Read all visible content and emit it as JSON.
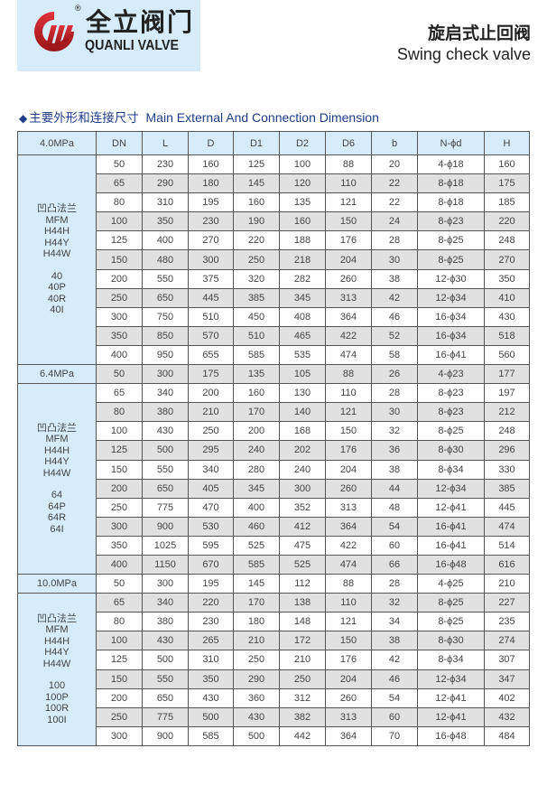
{
  "logo": {
    "cn": "全立阀门",
    "en": "QUANLI VALVE",
    "registered": "®",
    "colors": {
      "red": "#c8202a",
      "box": "#d6ecfb"
    }
  },
  "title": {
    "cn": "旋启式止回阀",
    "en": "Swing check valve"
  },
  "section": {
    "marker": "◆",
    "cn": "主要外形和连接尺寸",
    "en": "Main External And Connection Dimension"
  },
  "table": {
    "headers": [
      "DN",
      "L",
      "D",
      "D1",
      "D2",
      "D6",
      "b",
      "N-ϕd",
      "H"
    ],
    "groups": [
      {
        "pressure": "4.0MPa",
        "model_lines": [
          "凹凸法兰",
          "MFM",
          "H44H",
          "H44Y",
          "H44W",
          "",
          "40",
          "40P",
          "40R",
          "40I"
        ],
        "rows": [
          [
            "50",
            "230",
            "160",
            "125",
            "100",
            "88",
            "20",
            "4-ϕ18",
            "160"
          ],
          [
            "65",
            "290",
            "180",
            "145",
            "120",
            "110",
            "22",
            "8-ϕ18",
            "175"
          ],
          [
            "80",
            "310",
            "195",
            "160",
            "135",
            "121",
            "22",
            "8-ϕ18",
            "185"
          ],
          [
            "100",
            "350",
            "230",
            "190",
            "160",
            "150",
            "24",
            "8-ϕ23",
            "220"
          ],
          [
            "125",
            "400",
            "270",
            "220",
            "188",
            "176",
            "28",
            "8-ϕ25",
            "248"
          ],
          [
            "150",
            "480",
            "300",
            "250",
            "218",
            "204",
            "30",
            "8-ϕ25",
            "270"
          ],
          [
            "200",
            "550",
            "375",
            "320",
            "282",
            "260",
            "38",
            "12-ϕ30",
            "350"
          ],
          [
            "250",
            "650",
            "445",
            "385",
            "345",
            "313",
            "42",
            "12-ϕ34",
            "410"
          ],
          [
            "300",
            "750",
            "510",
            "450",
            "408",
            "364",
            "46",
            "16-ϕ34",
            "430"
          ],
          [
            "350",
            "850",
            "570",
            "510",
            "465",
            "422",
            "52",
            "16-ϕ34",
            "518"
          ],
          [
            "400",
            "950",
            "655",
            "585",
            "535",
            "474",
            "58",
            "16-ϕ41",
            "560"
          ]
        ]
      },
      {
        "pressure": "6.4MPa",
        "model_lines": [
          "凹凸法兰",
          "MFM",
          "H44H",
          "H44Y",
          "H44W",
          "",
          "64",
          "64P",
          "64R",
          "64I"
        ],
        "rows": [
          [
            "50",
            "300",
            "175",
            "135",
            "105",
            "88",
            "26",
            "4-ϕ23",
            "177"
          ],
          [
            "65",
            "340",
            "200",
            "160",
            "130",
            "110",
            "28",
            "8-ϕ23",
            "197"
          ],
          [
            "80",
            "380",
            "210",
            "170",
            "140",
            "121",
            "30",
            "8-ϕ23",
            "212"
          ],
          [
            "100",
            "430",
            "250",
            "200",
            "168",
            "150",
            "32",
            "8-ϕ25",
            "248"
          ],
          [
            "125",
            "500",
            "295",
            "240",
            "202",
            "176",
            "36",
            "8-ϕ30",
            "296"
          ],
          [
            "150",
            "550",
            "340",
            "280",
            "240",
            "204",
            "38",
            "8-ϕ34",
            "330"
          ],
          [
            "200",
            "650",
            "405",
            "345",
            "300",
            "260",
            "44",
            "12-ϕ34",
            "385"
          ],
          [
            "250",
            "775",
            "470",
            "400",
            "352",
            "313",
            "48",
            "12-ϕ41",
            "445"
          ],
          [
            "300",
            "900",
            "530",
            "460",
            "412",
            "364",
            "54",
            "16-ϕ41",
            "474"
          ],
          [
            "350",
            "1025",
            "595",
            "525",
            "475",
            "422",
            "60",
            "16-ϕ41",
            "514"
          ],
          [
            "400",
            "1150",
            "670",
            "585",
            "525",
            "474",
            "66",
            "16-ϕ48",
            "616"
          ]
        ]
      },
      {
        "pressure": "10.0MPa",
        "model_lines": [
          "凹凸法兰",
          "MFM",
          "H44H",
          "H44Y",
          "H44W",
          "",
          "100",
          "100P",
          "100R",
          "100I"
        ],
        "rows": [
          [
            "50",
            "300",
            "195",
            "145",
            "112",
            "88",
            "28",
            "4-ϕ25",
            "210"
          ],
          [
            "65",
            "340",
            "220",
            "170",
            "138",
            "110",
            "32",
            "8-ϕ25",
            "227"
          ],
          [
            "80",
            "380",
            "230",
            "180",
            "148",
            "121",
            "34",
            "8-ϕ25",
            "235"
          ],
          [
            "100",
            "430",
            "265",
            "210",
            "172",
            "150",
            "38",
            "8-ϕ30",
            "274"
          ],
          [
            "125",
            "500",
            "310",
            "250",
            "210",
            "176",
            "42",
            "8-ϕ34",
            "307"
          ],
          [
            "150",
            "550",
            "350",
            "290",
            "250",
            "204",
            "46",
            "12-ϕ34",
            "347"
          ],
          [
            "200",
            "650",
            "430",
            "360",
            "312",
            "260",
            "54",
            "12-ϕ41",
            "402"
          ],
          [
            "250",
            "775",
            "500",
            "430",
            "382",
            "313",
            "60",
            "12-ϕ41",
            "432"
          ],
          [
            "300",
            "900",
            "585",
            "500",
            "442",
            "364",
            "70",
            "16-ϕ48",
            "484"
          ]
        ]
      }
    ]
  }
}
